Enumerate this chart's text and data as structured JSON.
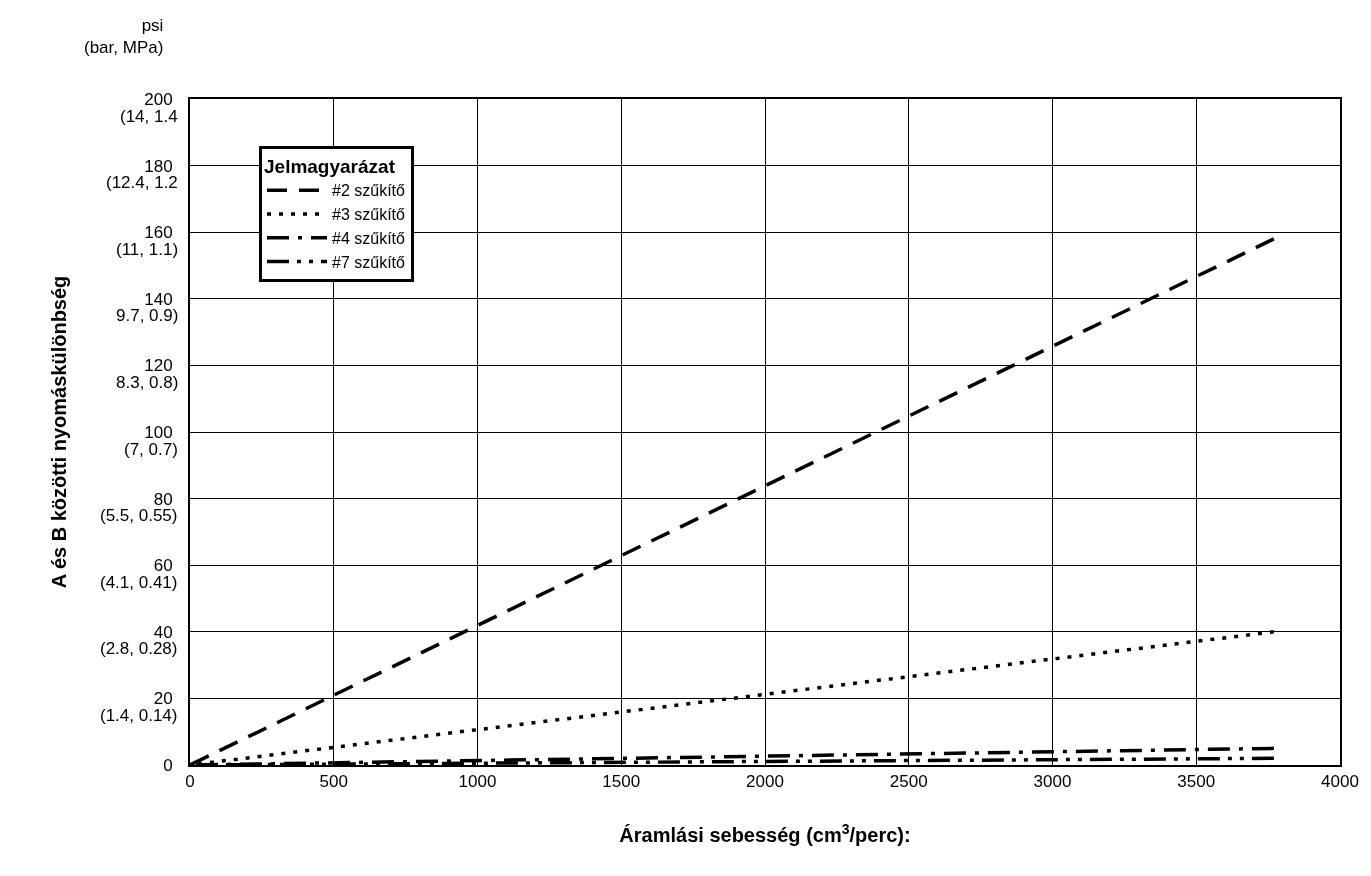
{
  "chart_data": {
    "type": "line",
    "xlabel": "Áramlási sebesség (cm$^{3}$/perc):",
    "ylabel": "A és B közötti nyomáskülönbség",
    "legend_title": "Jelmagyarázat",
    "annotations": [
      "psi\n(bar, MPa)",
      "(14, 1.4",
      "(12.4, 1.2",
      "(11, 1.1)",
      "9.7, 0.9)",
      "8.3, 0.8)",
      "(7, 0.7)",
      "(5.5, 0.55)",
      "(4.1, 0.41)",
      "(2.8, 0.28)",
      "(1.4, 0.14)"
    ],
    "series": [
      {
        "name": "#2 szűkítő",
        "color": "#000000",
        "line_style": "dashed",
        "values": [
          0,
          158
        ]
      },
      {
        "name": "#3 szűkítő",
        "color": "#000000",
        "line_style": "dotted",
        "values": [
          0,
          40
        ]
      },
      {
        "name": "#4 szűkítő",
        "color": "#000000",
        "line_style": "dashdot",
        "values": [
          0,
          5
        ]
      },
      {
        "name": "#7 szűkítő",
        "color": "#000000",
        "line_style": "dashdotdot",
        "values": [
          0,
          2
        ]
      }
    ],
    "x": [
      0,
      3770
    ],
    "xlim": [
      0,
      4000
    ],
    "xticks": [
      0,
      500,
      1000,
      1500,
      2000,
      2500,
      3000,
      3500,
      4000
    ],
    "ylim": [
      0,
      200
    ],
    "yticks": [
      0,
      20,
      40,
      60,
      80,
      100,
      120,
      140,
      160,
      180,
      200
    ],
    "grid": true,
    "legend": "top left",
    "marker": "none"
  }
}
